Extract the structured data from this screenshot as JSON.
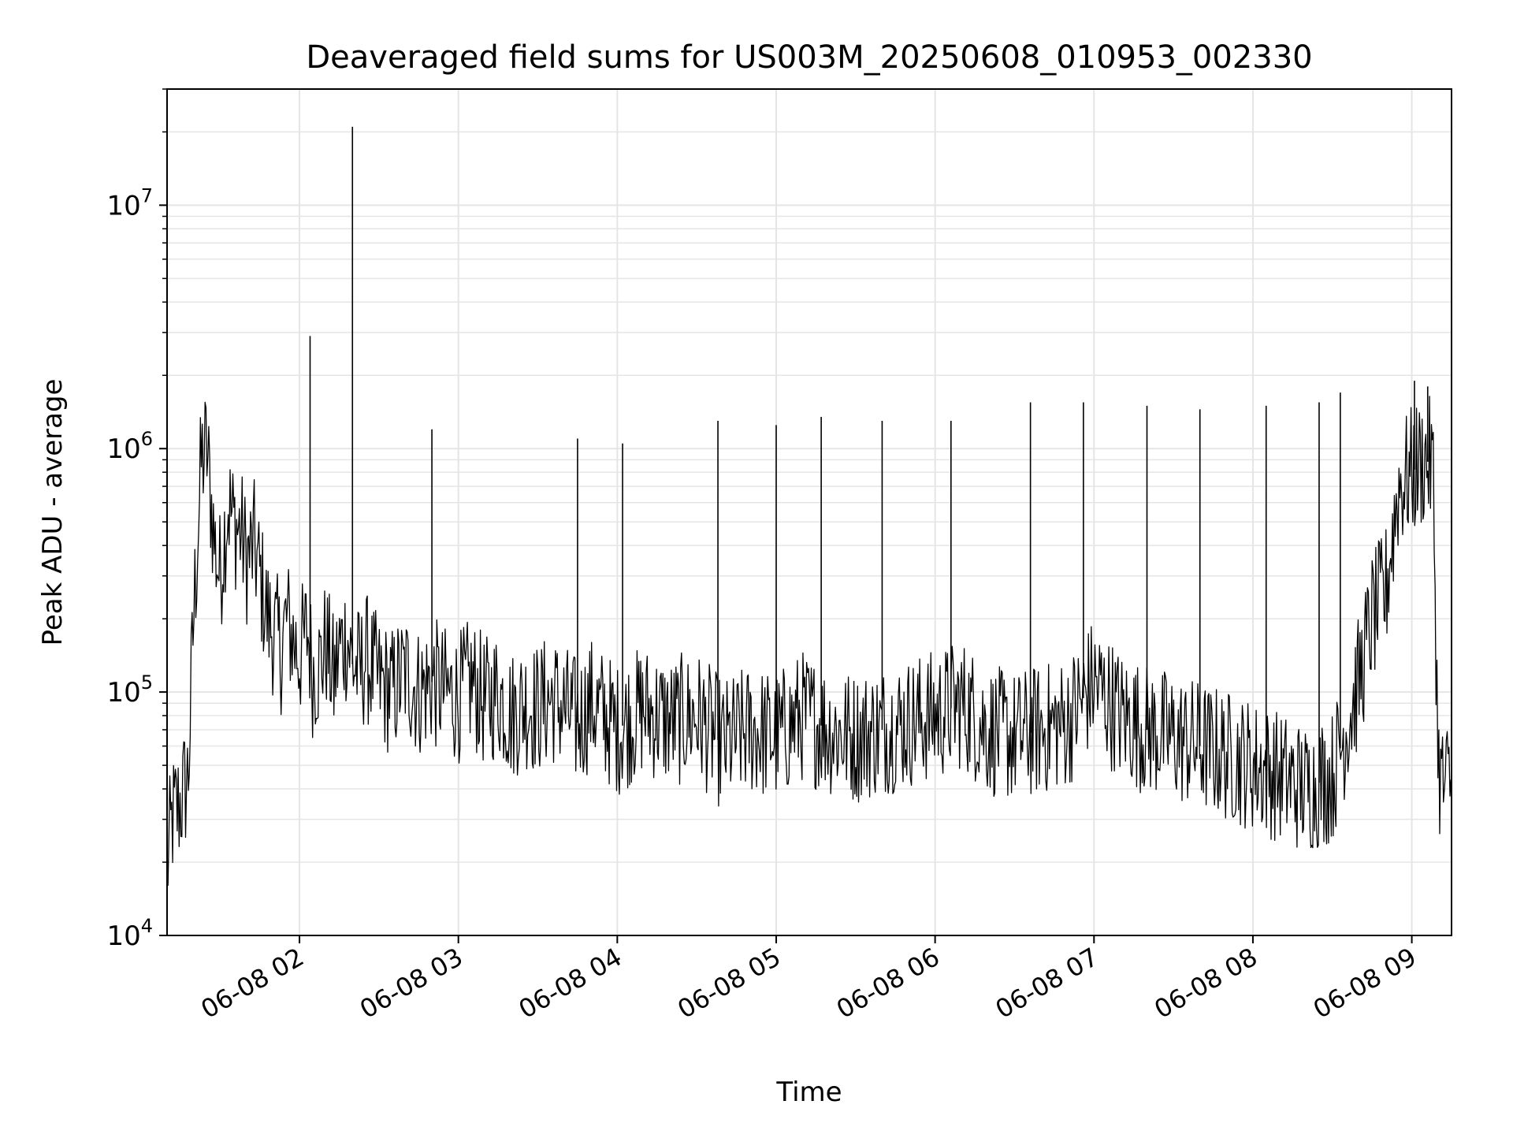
{
  "chart_data": {
    "type": "line",
    "title": "Deaveraged field sums for US003M_20250608_010953_002330",
    "xlabel": "Time",
    "ylabel": "Peak ADU - average",
    "yscale": "log",
    "ylim": [
      10000,
      30000000
    ],
    "xlim": [
      "2025-06-08 01:10",
      "2025-06-08 09:15"
    ],
    "grid": true,
    "line_color": "#000000",
    "grid_color": "#e5e5e5",
    "x_ticks": [
      {
        "value": "2025-06-08 02:00",
        "label": "06-08 02"
      },
      {
        "value": "2025-06-08 03:00",
        "label": "06-08 03"
      },
      {
        "value": "2025-06-08 04:00",
        "label": "06-08 04"
      },
      {
        "value": "2025-06-08 05:00",
        "label": "06-08 05"
      },
      {
        "value": "2025-06-08 06:00",
        "label": "06-08 06"
      },
      {
        "value": "2025-06-08 07:00",
        "label": "06-08 07"
      },
      {
        "value": "2025-06-08 08:00",
        "label": "06-08 08"
      },
      {
        "value": "2025-06-08 09:00",
        "label": "06-08 09"
      }
    ],
    "y_ticks": [
      {
        "value": 10000,
        "base": "10",
        "exp": "4"
      },
      {
        "value": 100000,
        "base": "10",
        "exp": "5"
      },
      {
        "value": 1000000,
        "base": "10",
        "exp": "6"
      },
      {
        "value": 10000000,
        "base": "10",
        "exp": "7"
      }
    ],
    "series": [
      {
        "x": [
          "2025-06-08 01:10",
          "2025-06-08 01:12",
          "2025-06-08 01:15",
          "2025-06-08 01:18",
          "2025-06-08 01:20",
          "2025-06-08 01:23",
          "2025-06-08 01:25",
          "2025-06-08 01:28",
          "2025-06-08 01:30",
          "2025-06-08 01:33",
          "2025-06-08 01:35",
          "2025-06-08 01:38",
          "2025-06-08 01:40",
          "2025-06-08 01:43",
          "2025-06-08 01:45",
          "2025-06-08 01:48",
          "2025-06-08 01:50",
          "2025-06-08 01:53",
          "2025-06-08 01:55",
          "2025-06-08 01:58",
          "2025-06-08 02:00",
          "2025-06-08 02:03",
          "2025-06-08 02:05",
          "2025-06-08 02:08",
          "2025-06-08 02:10",
          "2025-06-08 02:13",
          "2025-06-08 02:15",
          "2025-06-08 02:18",
          "2025-06-08 02:20",
          "2025-06-08 02:23",
          "2025-06-08 02:25",
          "2025-06-08 02:28",
          "2025-06-08 02:30",
          "2025-06-08 02:35",
          "2025-06-08 02:40",
          "2025-06-08 02:45",
          "2025-06-08 02:50",
          "2025-06-08 02:55",
          "2025-06-08 03:00",
          "2025-06-08 03:05",
          "2025-06-08 03:10",
          "2025-06-08 03:15",
          "2025-06-08 03:20",
          "2025-06-08 03:25",
          "2025-06-08 03:30",
          "2025-06-08 03:35",
          "2025-06-08 03:40",
          "2025-06-08 03:45",
          "2025-06-08 03:50",
          "2025-06-08 03:55",
          "2025-06-08 04:00",
          "2025-06-08 04:10",
          "2025-06-08 04:20",
          "2025-06-08 04:30",
          "2025-06-08 04:40",
          "2025-06-08 04:50",
          "2025-06-08 05:00",
          "2025-06-08 05:10",
          "2025-06-08 05:20",
          "2025-06-08 05:30",
          "2025-06-08 05:40",
          "2025-06-08 05:50",
          "2025-06-08 06:00",
          "2025-06-08 06:10",
          "2025-06-08 06:20",
          "2025-06-08 06:30",
          "2025-06-08 06:40",
          "2025-06-08 06:50",
          "2025-06-08 07:00",
          "2025-06-08 07:10",
          "2025-06-08 07:20",
          "2025-06-08 07:30",
          "2025-06-08 07:40",
          "2025-06-08 07:50",
          "2025-06-08 08:00",
          "2025-06-08 08:10",
          "2025-06-08 08:20",
          "2025-06-08 08:30",
          "2025-06-08 08:35",
          "2025-06-08 08:40",
          "2025-06-08 08:45",
          "2025-06-08 08:50",
          "2025-06-08 08:55",
          "2025-06-08 09:00",
          "2025-06-08 09:05",
          "2025-06-08 09:08",
          "2025-06-08 09:10",
          "2025-06-08 09:12",
          "2025-06-08 09:15"
        ],
        "y": [
          19000,
          30000,
          35000,
          45000,
          200000,
          900000,
          1000000,
          400000,
          300000,
          600000,
          500000,
          450000,
          350000,
          400000,
          300000,
          200000,
          180000,
          150000,
          200000,
          160000,
          140000,
          180000,
          120000,
          130000,
          160000,
          110000,
          150000,
          170000,
          130000,
          120000,
          140000,
          120000,
          110000,
          100000,
          120000,
          100000,
          110000,
          100000,
          95000,
          110000,
          90000,
          100000,
          80000,
          90000,
          85000,
          95000,
          85000,
          75000,
          90000,
          80000,
          70000,
          85000,
          75000,
          80000,
          60000,
          70000,
          65000,
          80000,
          70000,
          65000,
          70000,
          75000,
          80000,
          90000,
          70000,
          65000,
          70000,
          75000,
          110000,
          80000,
          70000,
          65000,
          60000,
          55000,
          50000,
          45000,
          40000,
          45000,
          70000,
          110000,
          200000,
          250000,
          700000,
          800000,
          900000,
          850000,
          50000,
          40000,
          45000
        ]
      }
    ],
    "spikes": [
      {
        "x": "2025-06-08 02:04",
        "y": 2900000
      },
      {
        "x": "2025-06-08 02:20",
        "y": 21000000
      },
      {
        "x": "2025-06-08 02:50",
        "y": 1200000
      },
      {
        "x": "2025-06-08 03:45",
        "y": 1100000
      },
      {
        "x": "2025-06-08 04:02",
        "y": 1050000
      },
      {
        "x": "2025-06-08 04:38",
        "y": 1300000
      },
      {
        "x": "2025-06-08 05:00",
        "y": 1250000
      },
      {
        "x": "2025-06-08 05:17",
        "y": 1350000
      },
      {
        "x": "2025-06-08 05:40",
        "y": 1300000
      },
      {
        "x": "2025-06-08 06:06",
        "y": 1300000
      },
      {
        "x": "2025-06-08 06:36",
        "y": 1550000
      },
      {
        "x": "2025-06-08 06:56",
        "y": 1550000
      },
      {
        "x": "2025-06-08 07:20",
        "y": 1500000
      },
      {
        "x": "2025-06-08 07:40",
        "y": 1450000
      },
      {
        "x": "2025-06-08 08:05",
        "y": 1500000
      },
      {
        "x": "2025-06-08 08:25",
        "y": 1550000
      },
      {
        "x": "2025-06-08 08:33",
        "y": 1700000
      },
      {
        "x": "2025-06-08 09:01",
        "y": 1900000
      },
      {
        "x": "2025-06-08 09:06",
        "y": 1800000
      }
    ]
  }
}
